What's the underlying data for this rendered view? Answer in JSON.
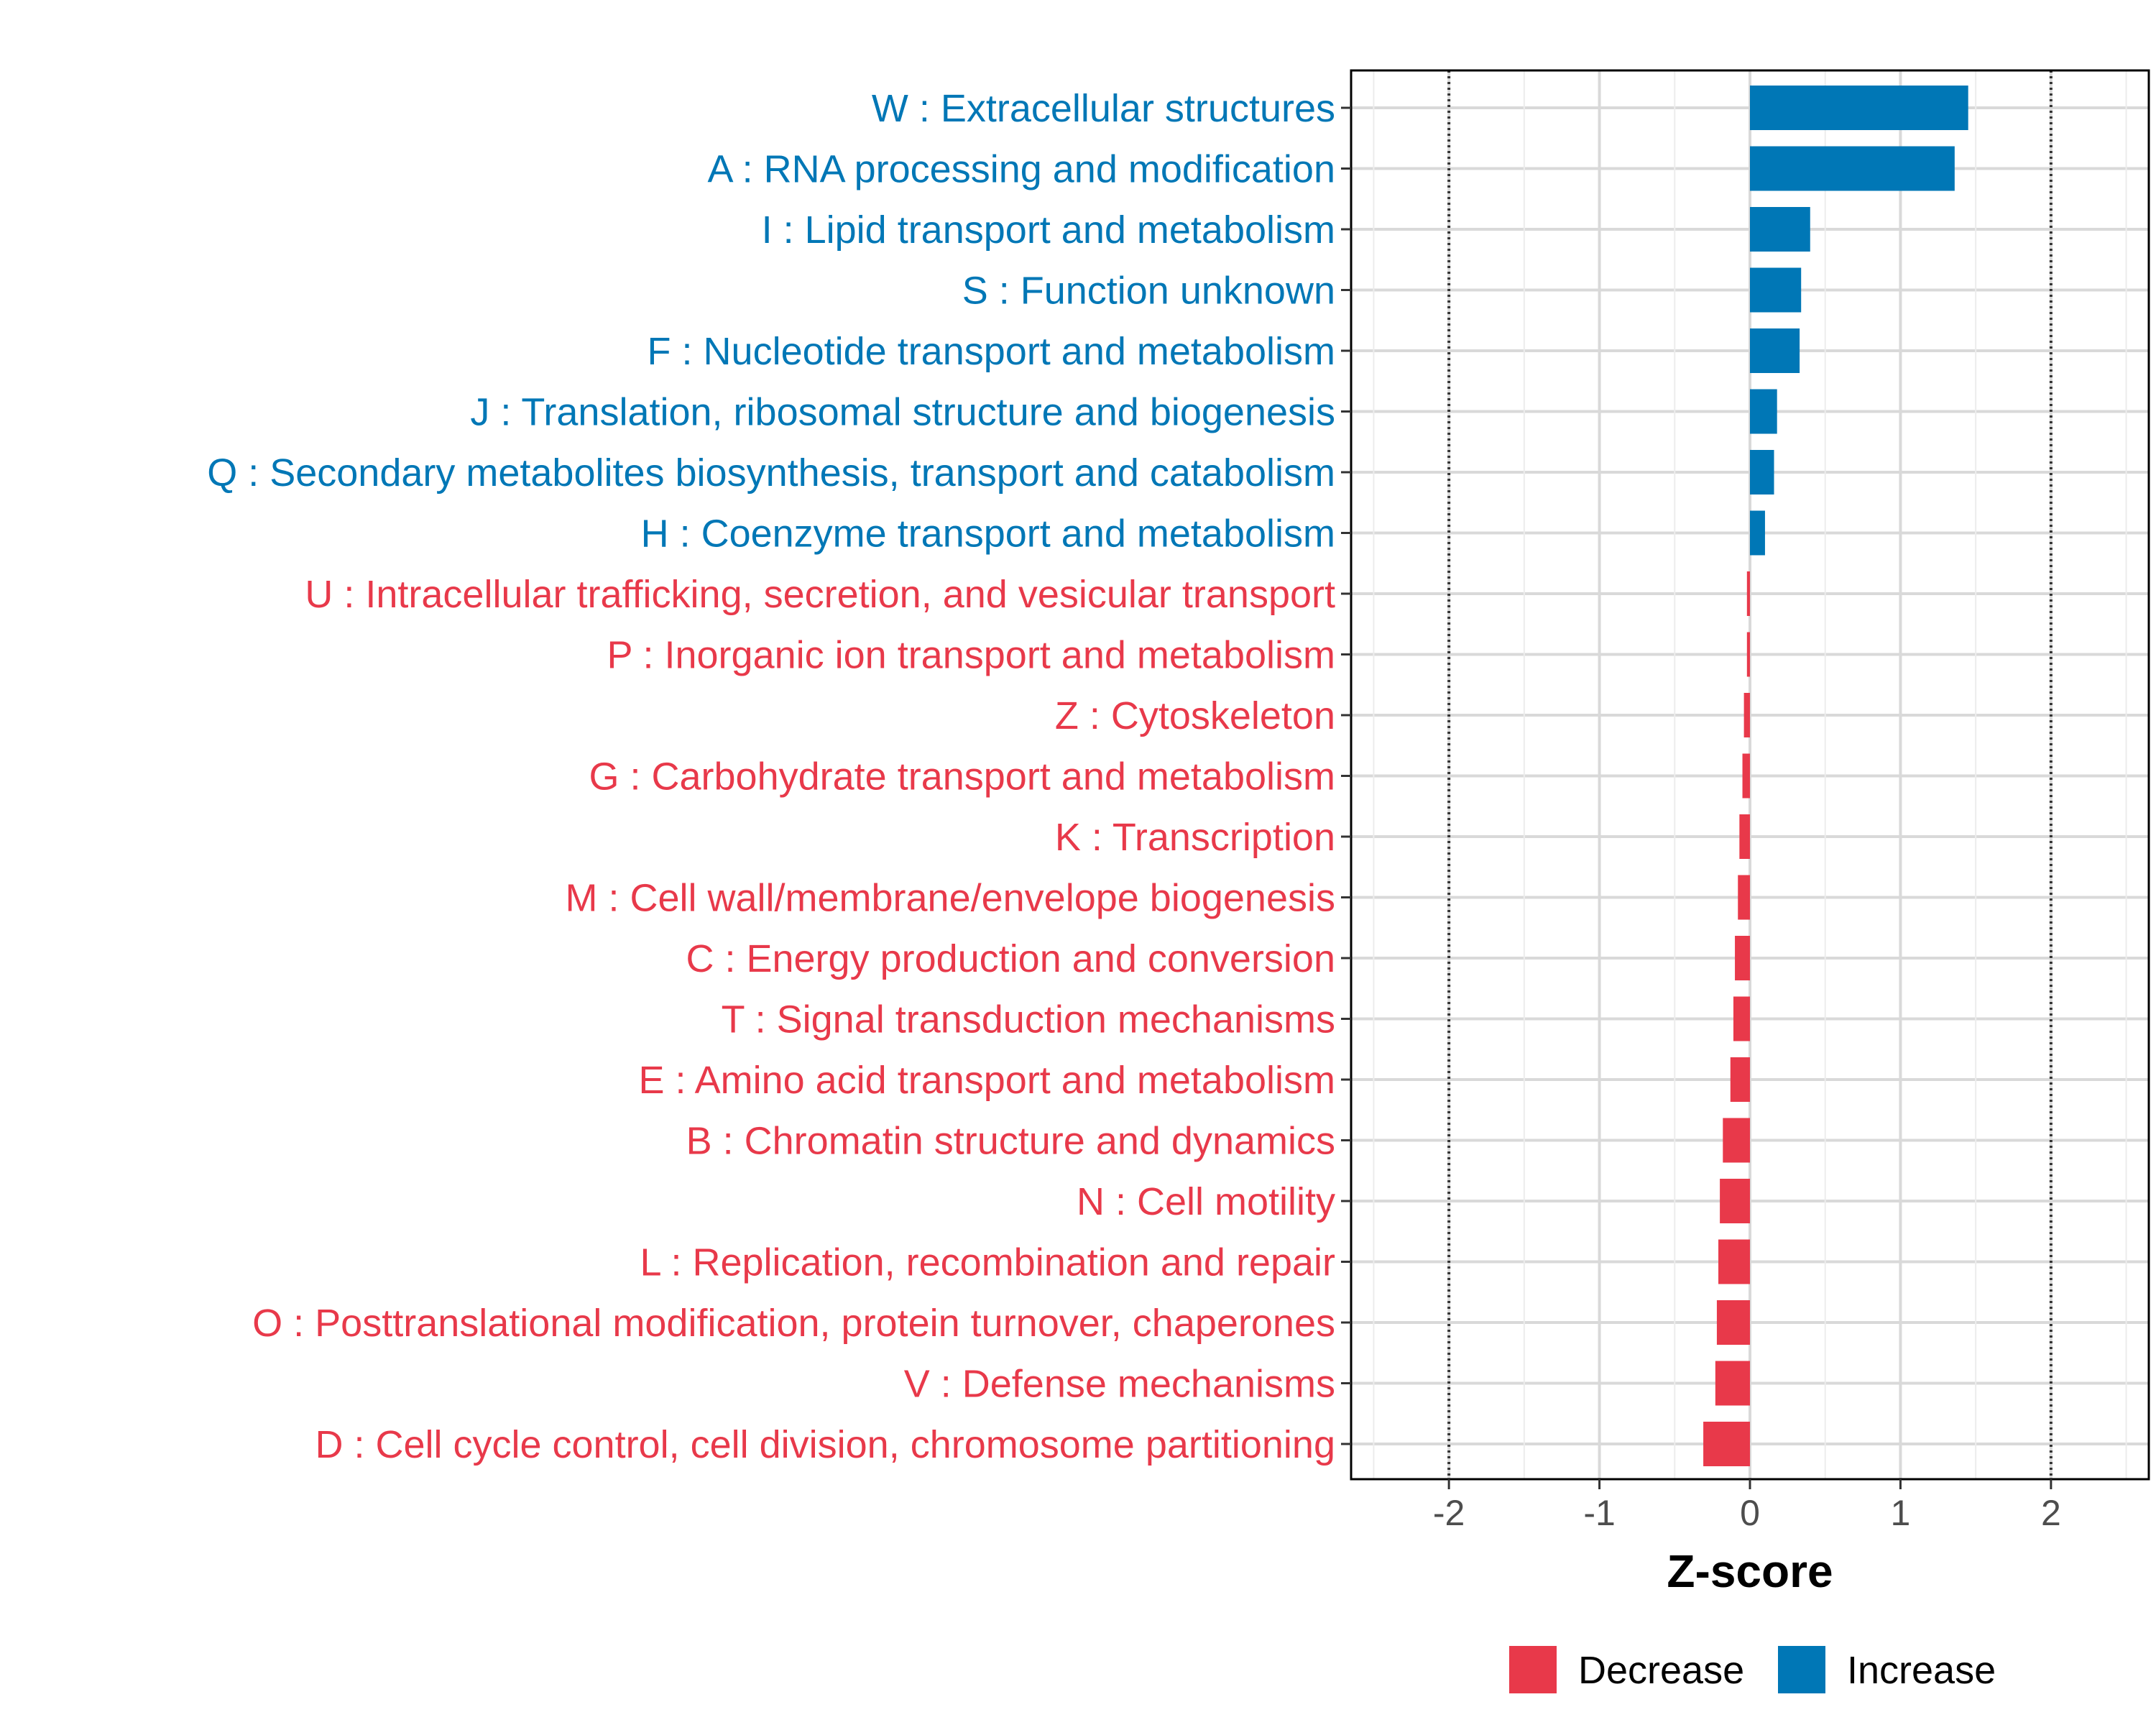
{
  "chart_data": {
    "type": "bar",
    "orientation": "horizontal",
    "title": "",
    "xlabel": "Z-score",
    "ylabel": "",
    "xlim": [
      -2.65,
      2.65
    ],
    "xticks": [
      -2,
      -1,
      0,
      1,
      2
    ],
    "xtick_labels": [
      "-2",
      "-1",
      "0",
      "1",
      "2"
    ],
    "reference_lines": [
      -2,
      2
    ],
    "grid": true,
    "colors": {
      "Decrease": "#e8394a",
      "Increase": "#0077b6"
    },
    "categories": [
      "W : Extracellular structures",
      "A : RNA processing and modification",
      "I : Lipid transport and metabolism",
      "S : Function unknown",
      "F : Nucleotide transport and metabolism",
      "J : Translation, ribosomal structure and biogenesis",
      "Q : Secondary metabolites biosynthesis, transport and catabolism",
      "H : Coenzyme transport and metabolism",
      "U : Intracellular trafficking, secretion, and vesicular transport",
      "P : Inorganic ion transport and metabolism",
      "Z : Cytoskeleton",
      "G : Carbohydrate transport and metabolism",
      "K : Transcription",
      "M : Cell wall/membrane/envelope biogenesis",
      "C : Energy production and conversion",
      "T : Signal transduction mechanisms",
      "E : Amino acid transport and metabolism",
      "B : Chromatin structure and dynamics",
      "N : Cell motility",
      "L : Replication, recombination and repair",
      "O : Posttranslational modification, protein turnover, chaperones",
      "V : Defense mechanisms",
      "D : Cell cycle control, cell division, chromosome partitioning"
    ],
    "values": [
      1.45,
      1.36,
      0.4,
      0.34,
      0.33,
      0.18,
      0.16,
      0.1,
      -0.02,
      -0.02,
      -0.04,
      -0.05,
      -0.07,
      -0.08,
      -0.1,
      -0.11,
      -0.13,
      -0.18,
      -0.2,
      -0.21,
      -0.22,
      -0.23,
      -0.31
    ],
    "groups": [
      "Increase",
      "Increase",
      "Increase",
      "Increase",
      "Increase",
      "Increase",
      "Increase",
      "Increase",
      "Decrease",
      "Decrease",
      "Decrease",
      "Decrease",
      "Decrease",
      "Decrease",
      "Decrease",
      "Decrease",
      "Decrease",
      "Decrease",
      "Decrease",
      "Decrease",
      "Decrease",
      "Decrease",
      "Decrease"
    ],
    "legend": {
      "position": "bottom",
      "entries": [
        {
          "label": "Decrease",
          "color": "#e8394a"
        },
        {
          "label": "Increase",
          "color": "#0077b6"
        }
      ]
    }
  }
}
